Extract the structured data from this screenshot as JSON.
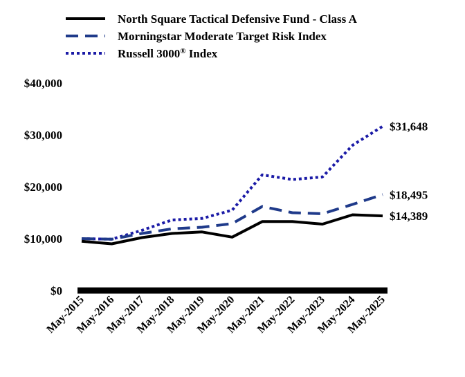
{
  "chart_data": {
    "type": "line",
    "title": "",
    "xlabel": "",
    "ylabel": "",
    "categories": [
      "May-2015",
      "May-2016",
      "May-2017",
      "May-2018",
      "May-2019",
      "May-2020",
      "May-2021",
      "May-2022",
      "May-2023",
      "May-2024",
      "May-2025"
    ],
    "ylim": [
      0,
      40000
    ],
    "yticks": [
      0,
      10000,
      20000,
      30000,
      40000
    ],
    "ytick_labels": [
      "$0",
      "$10,000",
      "$20,000",
      "$30,000",
      "$40,000"
    ],
    "grid": false,
    "legend_position": "top-left",
    "series": [
      {
        "name": "North Square Tactical Defensive Fund - Class A",
        "name_suffix": "",
        "style": "solid",
        "color": "#000000",
        "values": [
          9500,
          9000,
          10200,
          11000,
          11300,
          10300,
          13300,
          13300,
          12800,
          14600,
          14389
        ],
        "end_label": "$14,389"
      },
      {
        "name": "Morningstar Moderate Target Risk Index",
        "name_suffix": "",
        "style": "dashed",
        "color": "#1f3a8a",
        "values": [
          10000,
          9900,
          11000,
          11900,
          12200,
          12900,
          16200,
          15000,
          14800,
          16600,
          18495
        ],
        "end_label": "$18,495"
      },
      {
        "name": "Russell 3000",
        "name_suffix": "® Index",
        "style": "dotted",
        "color": "#1a1aa6",
        "values": [
          10000,
          9900,
          11600,
          13600,
          13900,
          15500,
          22300,
          21400,
          21900,
          28000,
          31648
        ],
        "end_label": "$31,648"
      }
    ]
  }
}
